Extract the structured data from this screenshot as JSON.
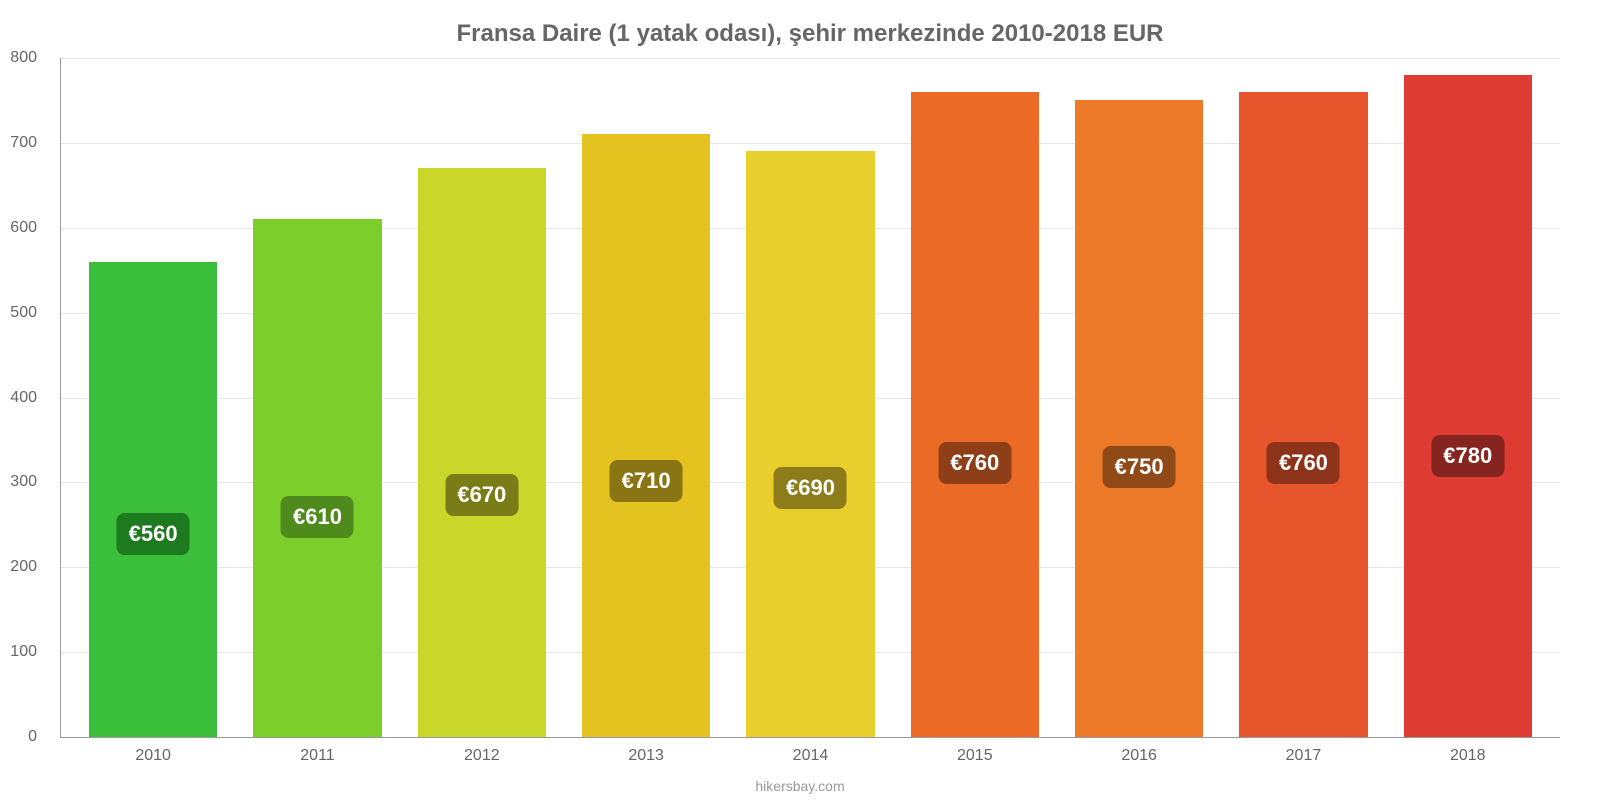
{
  "chart": {
    "type": "bar",
    "title": "Fransa Daire (1 yatak odası), şehir merkezinde 2010-2018 EUR",
    "title_fontsize": 24,
    "title_color": "#666666",
    "background_color": "#ffffff",
    "grid_color": "#e6e6e6",
    "axis_color": "#999999",
    "tick_color": "#666666",
    "tick_fontsize": 16,
    "ylim": [
      0,
      800
    ],
    "ytick_step": 100,
    "yticks": [
      0,
      100,
      200,
      300,
      400,
      500,
      600,
      700,
      800
    ],
    "categories": [
      "2010",
      "2011",
      "2012",
      "2013",
      "2014",
      "2015",
      "2016",
      "2017",
      "2018"
    ],
    "values": [
      560,
      610,
      670,
      710,
      690,
      760,
      750,
      760,
      780
    ],
    "value_labels": [
      "€560",
      "€610",
      "€670",
      "€710",
      "€690",
      "€760",
      "€750",
      "€760",
      "€780"
    ],
    "bar_colors": [
      "#3bbf3b",
      "#7ccf2b",
      "#c9d62a",
      "#e4c21f",
      "#e8cf2e",
      "#ea6a26",
      "#ec7a28",
      "#e7552c",
      "#de3c33"
    ],
    "label_badge_bg": [
      "#1e7a1e",
      "#4f8a1d",
      "#7a7c18",
      "#8a7514",
      "#8c7d1a",
      "#8f3f17",
      "#904a18",
      "#8c331a",
      "#86241f"
    ],
    "label_badge_text": [
      "#ffffff",
      "#ffffff",
      "#ffffff",
      "#ffffff",
      "#ffffff",
      "#ffffff",
      "#ffffff",
      "#ffffff",
      "#ffffff"
    ],
    "label_fontsize": 22,
    "bar_width": 0.78,
    "credit": "hikersbay.com",
    "credit_color": "#999999",
    "credit_fontsize": 14
  }
}
